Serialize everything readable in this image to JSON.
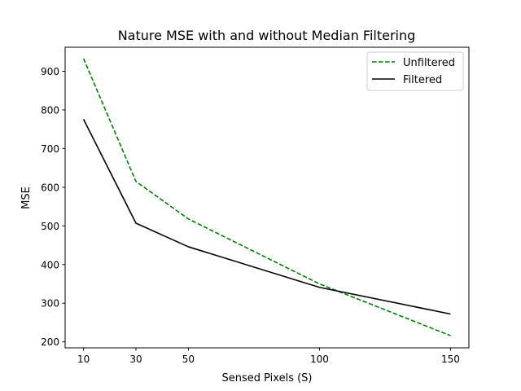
{
  "chart_data": {
    "type": "line",
    "title": "Nature MSE with and without Median Filtering",
    "xlabel": "Sensed Pixels (S)",
    "ylabel": "MSE",
    "x": [
      10,
      30,
      50,
      100,
      150
    ],
    "xlim": [
      2.98,
      157.02
    ],
    "ylim": [
      184.5,
      962.2
    ],
    "xticks": [
      10,
      30,
      50,
      100,
      150
    ],
    "yticks": [
      200,
      300,
      400,
      500,
      600,
      700,
      800,
      900
    ],
    "grid": false,
    "legend_position": "top-right",
    "series": [
      {
        "name": "Unfiltered",
        "color": "#008000",
        "style": "dashed",
        "values": [
          933,
          615,
          518,
          350,
          216
        ]
      },
      {
        "name": "Filtered",
        "color": "#000000",
        "style": "solid",
        "values": [
          776,
          507,
          446,
          341,
          272
        ]
      }
    ]
  }
}
